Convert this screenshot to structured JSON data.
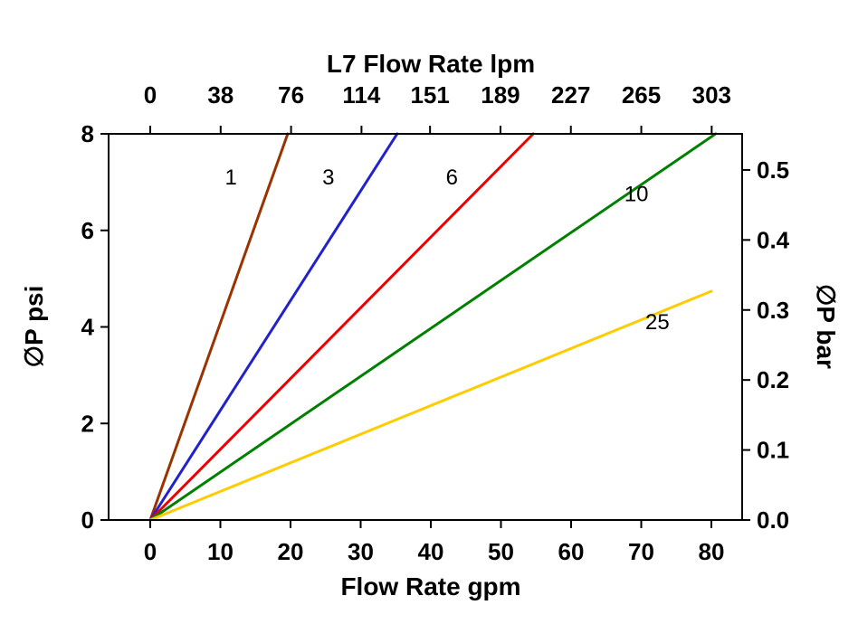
{
  "page": {
    "background": "#ffffff"
  },
  "chart_data": {
    "type": "line",
    "title": "L7 Flow Rate lpm",
    "x_bottom": {
      "label": "Flow Rate gpm",
      "ticks": [
        0,
        10,
        20,
        30,
        40,
        50,
        60,
        70,
        80
      ],
      "range_gpm": [
        0,
        80
      ]
    },
    "x_top": {
      "label": "L7 Flow Rate lpm",
      "tick_labels": [
        "0",
        "38",
        "76",
        "114",
        "151",
        "189",
        "227",
        "265",
        "303"
      ],
      "lpm_per_gpm": 3.78541
    },
    "y_left": {
      "label": "∅P psi",
      "ticks": [
        0,
        2,
        4,
        6,
        8
      ],
      "range_psi": [
        0,
        8
      ]
    },
    "y_right": {
      "label": "∅P bar",
      "tick_labels": [
        "0.0",
        "0.1",
        "0.2",
        "0.3",
        "0.4",
        "0.5"
      ],
      "psi_per_bar": 14.5038
    },
    "grid": false,
    "legend": "inline-labels",
    "series": [
      {
        "name": "1",
        "color": "#993300",
        "points": [
          [
            0,
            0
          ],
          [
            19.6,
            8
          ]
        ],
        "label_pos": [
          11.5,
          6.95
        ]
      },
      {
        "name": "3",
        "color": "#2222CC",
        "points": [
          [
            0,
            0
          ],
          [
            35.2,
            8
          ]
        ],
        "label_pos": [
          25.4,
          6.95
        ]
      },
      {
        "name": "6",
        "color": "#EE0000",
        "points": [
          [
            0,
            0
          ],
          [
            54.6,
            8
          ]
        ],
        "label_pos": [
          43.0,
          6.95
        ]
      },
      {
        "name": "10",
        "color": "#008000",
        "points": [
          [
            0,
            0
          ],
          [
            80.6,
            8
          ]
        ],
        "label_pos": [
          69.3,
          6.6
        ]
      },
      {
        "name": "25",
        "color": "#FFCC00",
        "points": [
          [
            0,
            0
          ],
          [
            80.0,
            4.74
          ]
        ],
        "label_pos": [
          72.3,
          3.95
        ]
      }
    ]
  }
}
